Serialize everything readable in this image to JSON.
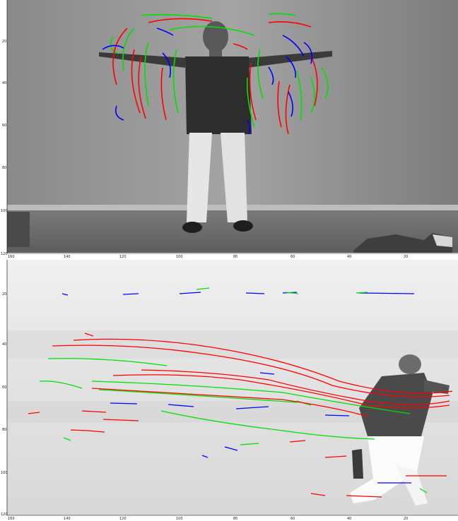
{
  "panels": [
    {
      "id": "top",
      "content": "grayscale photo of a man standing with arms raised, overlaid with red, green and blue motion trajectory tracks",
      "y_ticks": [
        "20",
        "40",
        "60",
        "80",
        "100",
        "120"
      ],
      "x_ticks": [
        "160",
        "140",
        "120",
        "100",
        "80",
        "60",
        "40",
        "20"
      ],
      "axis_origin_label": "0"
    },
    {
      "id": "bottom",
      "content": "grayscale photo of a baseball player running across a field, overlaid with red, green and blue motion trajectory tracks",
      "y_ticks": [
        "20",
        "40",
        "60",
        "80",
        "100",
        "120"
      ],
      "x_ticks": [
        "160",
        "140",
        "120",
        "100",
        "80",
        "60",
        "40",
        "20"
      ]
    }
  ],
  "track_colors": {
    "red": "#ff0000",
    "green": "#00e000",
    "blue": "#0000ff"
  }
}
